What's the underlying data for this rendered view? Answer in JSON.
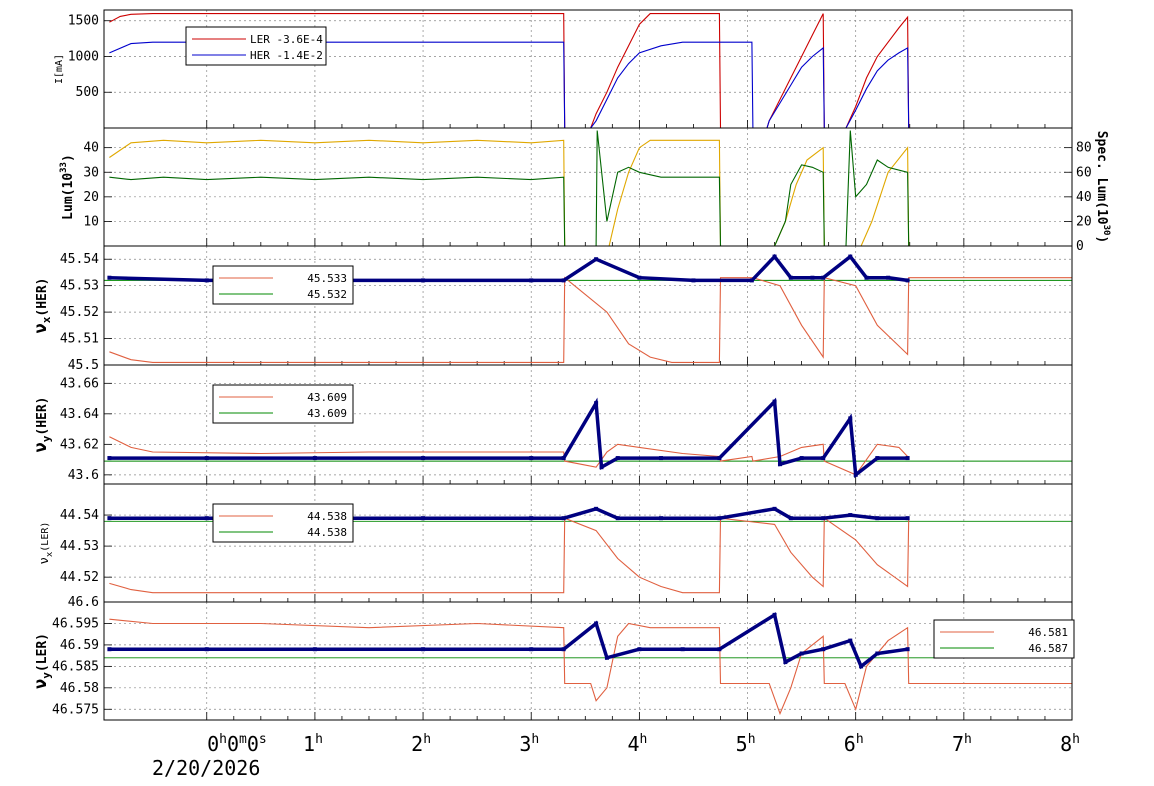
{
  "colors": {
    "ler": "#cc0000",
    "her": "#0000cc",
    "lum": "#006600",
    "spec": "#e0a800",
    "ler_thin": "#e06040",
    "green_ref": "#008800",
    "marker": "#000080",
    "grid": "#888888"
  },
  "x_axis": {
    "ticks": [
      {
        "main": "0",
        "sup": "h",
        "rest": "0",
        "sup2": "m",
        "rest2": "0",
        "sup3": "s"
      },
      {
        "main": "1",
        "sup": "h"
      },
      {
        "main": "2",
        "sup": "h"
      },
      {
        "main": "3",
        "sup": "h"
      },
      {
        "main": "4",
        "sup": "h"
      },
      {
        "main": "5",
        "sup": "h"
      },
      {
        "main": "6",
        "sup": "h"
      },
      {
        "main": "7",
        "sup": "h"
      },
      {
        "main": "8",
        "sup": "h"
      }
    ],
    "date": "2/20/2026"
  },
  "chart_data": [
    {
      "type": "line",
      "ylabel": "I[mA]",
      "ylim": [
        0,
        1650
      ],
      "yticks": [
        "500",
        "1000",
        "1500"
      ],
      "legend": [
        {
          "label": "LER  -3.6E-4",
          "color": "#cc0000"
        },
        {
          "label": "HER  -1.4E-2",
          "color": "#0000cc"
        }
      ],
      "series": [
        {
          "color": "#cc0000",
          "x": [
            -0.9,
            -0.8,
            -0.7,
            -0.5,
            3.3,
            3.31,
            3.55,
            3.6,
            3.7,
            3.8,
            3.9,
            4.0,
            4.1,
            4.74,
            4.75,
            5.18,
            5.2,
            5.3,
            5.4,
            5.5,
            5.6,
            5.7,
            5.71,
            5.91,
            6.0,
            6.1,
            6.2,
            6.3,
            6.4,
            6.48,
            6.49,
            8.0
          ],
          "y": [
            1480,
            1560,
            1590,
            1600,
            1600,
            0,
            0,
            200,
            500,
            850,
            1150,
            1450,
            1600,
            1600,
            0,
            0,
            100,
            400,
            700,
            1000,
            1300,
            1600,
            0,
            0,
            300,
            700,
            1000,
            1200,
            1400,
            1550,
            0,
            0
          ]
        },
        {
          "color": "#0000cc",
          "x": [
            -0.9,
            -0.7,
            -0.5,
            3.3,
            3.31,
            3.55,
            3.6,
            3.7,
            3.8,
            3.9,
            4.0,
            4.2,
            4.4,
            5.04,
            5.05,
            5.18,
            5.2,
            5.3,
            5.4,
            5.5,
            5.6,
            5.7,
            5.71,
            5.91,
            6.0,
            6.1,
            6.2,
            6.3,
            6.4,
            6.48,
            6.49,
            8.0
          ],
          "y": [
            1050,
            1180,
            1200,
            1200,
            0,
            0,
            100,
            400,
            700,
            900,
            1050,
            1150,
            1200,
            1200,
            0,
            0,
            100,
            350,
            600,
            850,
            1000,
            1120,
            0,
            0,
            250,
            550,
            800,
            950,
            1050,
            1120,
            0,
            0
          ]
        }
      ]
    },
    {
      "type": "line",
      "ylabel": "Lum(10^33)",
      "ylabel_main": "Lum(10",
      "ylabel_sup": "33",
      "ylabel_end": ")",
      "ylim": [
        0,
        48
      ],
      "yticks": [
        "10",
        "20",
        "30",
        "40"
      ],
      "y2label_main": "Spec. Lum(10",
      "y2label_sup": "30",
      "y2label_end": ")",
      "y2lim": [
        0,
        96
      ],
      "y2ticks": [
        "0",
        "20",
        "40",
        "60",
        "80"
      ],
      "series": [
        {
          "color": "#e0a800",
          "x": [
            -0.9,
            -0.7,
            -0.4,
            0,
            0.5,
            1.0,
            1.5,
            2.0,
            2.5,
            3.0,
            3.3,
            3.31,
            3.72,
            3.8,
            3.9,
            4.0,
            4.1,
            4.3,
            4.74,
            4.75,
            5.25,
            5.35,
            5.45,
            5.55,
            5.7,
            5.71,
            6.05,
            6.15,
            6.3,
            6.48,
            6.49,
            8.0
          ],
          "y": [
            36,
            42,
            43,
            42,
            43,
            42,
            43,
            42,
            43,
            42,
            43,
            0,
            0,
            15,
            30,
            40,
            43,
            43,
            43,
            0,
            0,
            10,
            25,
            35,
            40,
            0,
            0,
            10,
            30,
            40,
            0,
            0
          ]
        },
        {
          "color": "#006600",
          "x": [
            -0.9,
            -0.7,
            -0.4,
            0,
            0.5,
            1.0,
            1.5,
            2.0,
            2.5,
            3.0,
            3.3,
            3.31,
            3.6,
            3.61,
            3.7,
            3.8,
            3.9,
            4.0,
            4.2,
            4.74,
            4.75,
            5.25,
            5.35,
            5.4,
            5.5,
            5.6,
            5.7,
            5.71,
            5.91,
            5.95,
            6.0,
            6.1,
            6.2,
            6.3,
            6.48,
            6.49,
            8.0
          ],
          "y": [
            28,
            27,
            28,
            27,
            28,
            27,
            28,
            27,
            28,
            27,
            28,
            0,
            0,
            47,
            10,
            30,
            32,
            30,
            28,
            28,
            0,
            0,
            10,
            25,
            33,
            32,
            30,
            0,
            0,
            47,
            20,
            25,
            35,
            32,
            30,
            0,
            0
          ]
        }
      ]
    },
    {
      "type": "line",
      "ylabel": "νx(HER)",
      "ylabel_main": "ν",
      "ylabel_sub": "x",
      "ylabel_end": "(HER)",
      "ylim": [
        45.5,
        45.545
      ],
      "yticks": [
        "45.5",
        "45.51",
        "45.52",
        "45.53",
        "45.54"
      ],
      "legend": [
        {
          "label": "45.533",
          "color": "#e06040"
        },
        {
          "label": "45.532",
          "color": "#008800"
        }
      ],
      "reference": 45.532,
      "series": [
        {
          "color": "#e06040",
          "x": [
            -0.9,
            -0.7,
            -0.5,
            3.3,
            3.31,
            3.7,
            3.9,
            4.1,
            4.3,
            4.5,
            4.74,
            4.75,
            5.04,
            5.05,
            5.3,
            5.5,
            5.7,
            5.71,
            6.0,
            6.2,
            6.48,
            6.49,
            8.0
          ],
          "y": [
            45.505,
            45.502,
            45.501,
            45.501,
            45.533,
            45.52,
            45.508,
            45.503,
            45.501,
            45.501,
            45.501,
            45.533,
            45.533,
            45.533,
            45.53,
            45.515,
            45.503,
            45.533,
            45.53,
            45.515,
            45.504,
            45.533,
            45.533
          ]
        },
        {
          "color": "#000080",
          "marker": true,
          "x": [
            -0.9,
            0,
            1,
            2,
            3,
            3.3,
            3.6,
            4,
            4.5,
            5.04,
            5.25,
            5.4,
            5.6,
            5.7,
            5.95,
            6.1,
            6.3,
            6.48
          ],
          "y": [
            45.533,
            45.532,
            45.532,
            45.532,
            45.532,
            45.532,
            45.54,
            45.533,
            45.532,
            45.532,
            45.541,
            45.533,
            45.533,
            45.533,
            45.541,
            45.533,
            45.533,
            45.532
          ]
        }
      ]
    },
    {
      "type": "line",
      "ylabel": "νy(HER)",
      "ylabel_main": "ν",
      "ylabel_sub": "y",
      "ylabel_end": "(HER)",
      "ylim": [
        43.594,
        43.672
      ],
      "yticks": [
        "43.6",
        "43.62",
        "43.64",
        "43.66"
      ],
      "legend": [
        {
          "label": "43.609",
          "color": "#e06040"
        },
        {
          "label": "43.609",
          "color": "#008800"
        }
      ],
      "reference": 43.609,
      "series": [
        {
          "color": "#e06040",
          "x": [
            -0.9,
            -0.7,
            -0.5,
            0.5,
            1.5,
            3.3,
            3.31,
            3.6,
            3.7,
            3.8,
            4.0,
            4.4,
            4.74,
            4.75,
            5.04,
            5.05,
            5.3,
            5.5,
            5.7,
            5.71,
            6.0,
            6.2,
            6.4,
            6.48
          ],
          "y": [
            43.625,
            43.618,
            43.615,
            43.614,
            43.615,
            43.615,
            43.609,
            43.605,
            43.615,
            43.62,
            43.618,
            43.614,
            43.612,
            43.609,
            43.612,
            43.609,
            43.612,
            43.618,
            43.62,
            43.609,
            43.6,
            43.62,
            43.618,
            43.612
          ]
        },
        {
          "color": "#000080",
          "marker": true,
          "x": [
            -0.9,
            0,
            1,
            2,
            3,
            3.3,
            3.6,
            3.65,
            3.8,
            4.2,
            4.74,
            5.25,
            5.3,
            5.5,
            5.7,
            5.95,
            6.0,
            6.2,
            6.48
          ],
          "y": [
            43.611,
            43.611,
            43.611,
            43.611,
            43.611,
            43.611,
            43.647,
            43.605,
            43.611,
            43.611,
            43.611,
            43.648,
            43.607,
            43.611,
            43.611,
            43.637,
            43.6,
            43.611,
            43.611
          ]
        }
      ]
    },
    {
      "type": "line",
      "ylabel": "νx(LER)",
      "ylabel_main": "ν",
      "ylabel_sub": "x",
      "ylabel_end": "(LER)",
      "ylim": [
        44.512,
        44.55
      ],
      "yticks": [
        "44.52",
        "44.53",
        "44.54"
      ],
      "legend": [
        {
          "label": "44.538",
          "color": "#e06040"
        },
        {
          "label": "44.538",
          "color": "#008800"
        }
      ],
      "reference": 44.538,
      "series": [
        {
          "color": "#e06040",
          "x": [
            -0.9,
            -0.7,
            -0.5,
            3.3,
            3.31,
            3.6,
            3.8,
            4.0,
            4.2,
            4.4,
            4.74,
            4.75,
            5.25,
            5.4,
            5.6,
            5.7,
            5.71,
            6.0,
            6.2,
            6.48,
            6.49
          ],
          "y": [
            44.518,
            44.516,
            44.515,
            44.515,
            44.539,
            44.535,
            44.526,
            44.52,
            44.517,
            44.515,
            44.515,
            44.539,
            44.537,
            44.528,
            44.52,
            44.517,
            44.539,
            44.532,
            44.524,
            44.517,
            44.539
          ]
        },
        {
          "color": "#000080",
          "marker": true,
          "x": [
            -0.9,
            0,
            1,
            2,
            3,
            3.3,
            3.6,
            3.8,
            4.2,
            4.74,
            5.25,
            5.4,
            5.7,
            5.95,
            6.2,
            6.48
          ],
          "y": [
            44.539,
            44.539,
            44.539,
            44.539,
            44.539,
            44.539,
            44.542,
            44.539,
            44.539,
            44.539,
            44.542,
            44.539,
            44.539,
            44.54,
            44.539,
            44.539
          ]
        }
      ]
    },
    {
      "type": "line",
      "ylabel": "νy(LER)",
      "ylabel_main": "ν",
      "ylabel_sub": "y",
      "ylabel_end": "(LER)",
      "ylim": [
        46.5725,
        46.6
      ],
      "yticks": [
        "46.575",
        "46.58",
        "46.585",
        "46.59",
        "46.595",
        "46.6"
      ],
      "legend": [
        {
          "label": "46.581",
          "color": "#e06040"
        },
        {
          "label": "46.587",
          "color": "#008800"
        }
      ],
      "reference": 46.587,
      "series": [
        {
          "color": "#e06040",
          "x": [
            -0.9,
            -0.5,
            0.5,
            1.5,
            2.5,
            3.3,
            3.31,
            3.55,
            3.6,
            3.7,
            3.8,
            3.9,
            4.1,
            4.74,
            4.75,
            5.2,
            5.3,
            5.4,
            5.5,
            5.7,
            5.71,
            5.9,
            6.0,
            6.1,
            6.3,
            6.48,
            6.49,
            8.0
          ],
          "y": [
            46.596,
            46.595,
            46.595,
            46.594,
            46.595,
            46.594,
            46.581,
            46.581,
            46.577,
            46.58,
            46.592,
            46.595,
            46.594,
            46.594,
            46.581,
            46.581,
            46.574,
            46.58,
            46.588,
            46.592,
            46.581,
            46.581,
            46.575,
            46.585,
            46.591,
            46.594,
            46.581,
            46.581
          ]
        },
        {
          "color": "#000080",
          "marker": true,
          "x": [
            -0.9,
            0,
            1,
            2,
            3,
            3.3,
            3.6,
            3.7,
            4.0,
            4.4,
            4.74,
            5.25,
            5.35,
            5.5,
            5.7,
            5.95,
            6.05,
            6.2,
            6.48
          ],
          "y": [
            46.589,
            46.589,
            46.589,
            46.589,
            46.589,
            46.589,
            46.595,
            46.587,
            46.589,
            46.589,
            46.589,
            46.597,
            46.586,
            46.588,
            46.589,
            46.591,
            46.585,
            46.588,
            46.589
          ]
        }
      ]
    }
  ]
}
